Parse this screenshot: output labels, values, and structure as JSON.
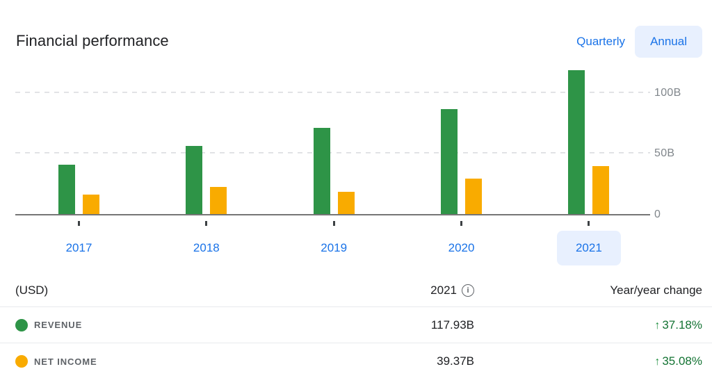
{
  "header": {
    "title": "Financial performance",
    "range_toggle": {
      "quarterly_label": "Quarterly",
      "annual_label": "Annual",
      "selected": "Annual"
    }
  },
  "chart_data": {
    "type": "bar",
    "title": "Financial performance",
    "unit": "USD, billions",
    "categories": [
      "2017",
      "2018",
      "2019",
      "2020",
      "2021"
    ],
    "series": [
      {
        "name": "Revenue",
        "color": "#2e9447",
        "values": [
          40.65,
          55.84,
          70.7,
          85.97,
          117.93
        ]
      },
      {
        "name": "Net income",
        "color": "#f9ab00",
        "values": [
          15.93,
          22.11,
          18.49,
          29.15,
          39.37
        ]
      }
    ],
    "y_axis": {
      "tick_labels": [
        "100B",
        "50B",
        "0"
      ],
      "tick_values": [
        100,
        50,
        0
      ],
      "ylim": [
        0,
        125
      ],
      "gridlines": "dashed"
    },
    "selected_category": "2021",
    "legend_position": "table-below"
  },
  "table": {
    "header": {
      "unit_label": "(USD)",
      "period_label": "2021",
      "change_label": "Year/year change",
      "info_icon": "info-icon"
    },
    "rows": [
      {
        "label": "REVENUE",
        "dot_color": "#2e9447",
        "value": "117.93B",
        "change": "37.18%",
        "direction": "up",
        "change_color": "#137333"
      },
      {
        "label": "NET INCOME",
        "dot_color": "#f9ab00",
        "value": "39.37B",
        "change": "35.08%",
        "direction": "up",
        "change_color": "#137333"
      }
    ]
  },
  "glyphs": {
    "up_arrow": "↑",
    "info": "i"
  },
  "colors": {
    "accent_blue": "#1a73e8",
    "pill_background": "#e8f0fe",
    "positive_green": "#137333",
    "axis_label_gray": "#80868b",
    "baseline_gray": "#757575",
    "gridline_gray": "#dadce0"
  }
}
